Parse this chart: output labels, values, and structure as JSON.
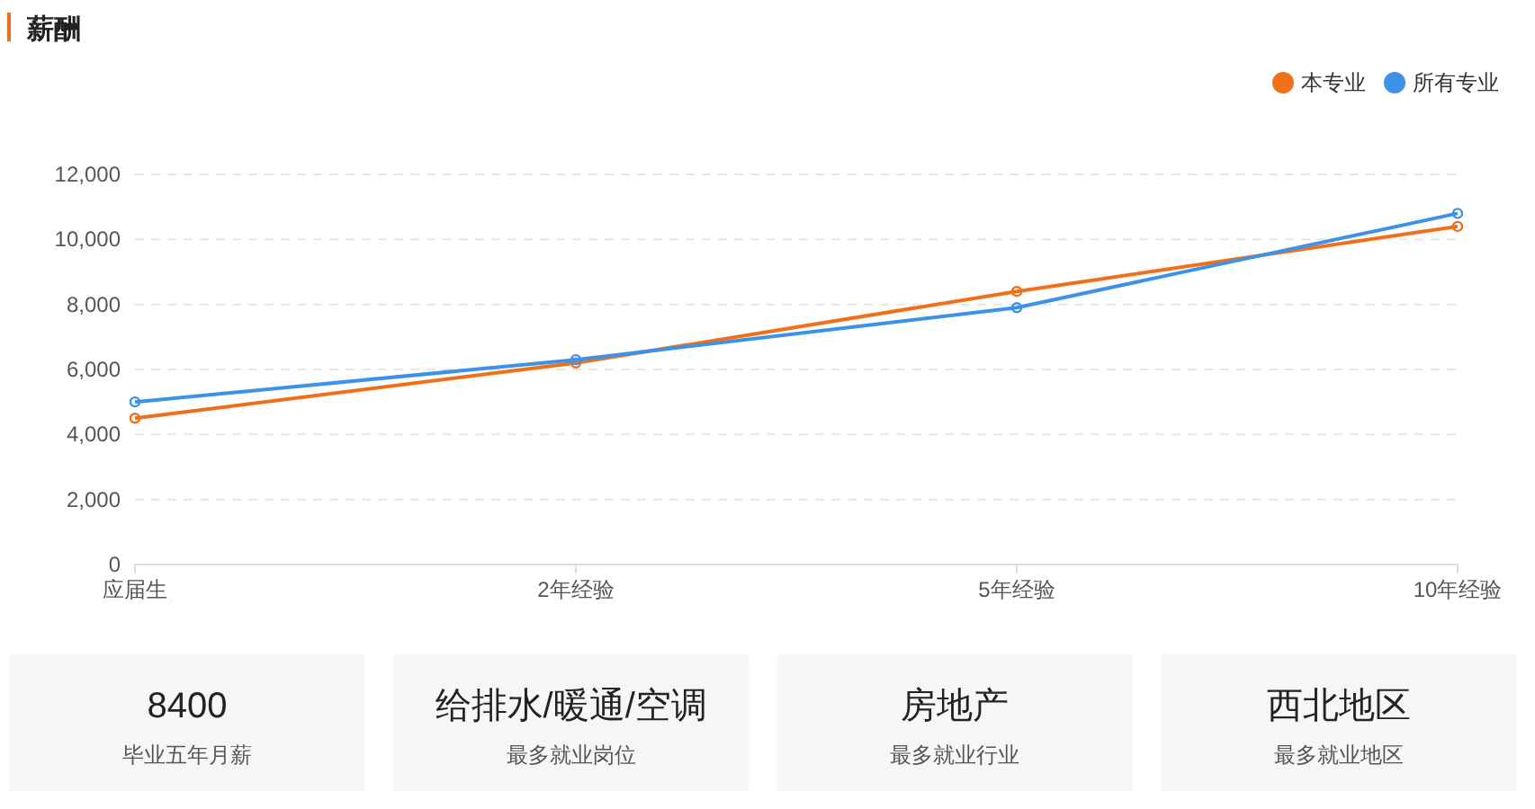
{
  "chart_data": [
    {
      "type": "line",
      "title": "薪酬",
      "categories": [
        "应届生",
        "2年经验",
        "5年经验",
        "10年经验"
      ],
      "series": [
        {
          "name": "本专业",
          "color": "#f07019",
          "values": [
            4500,
            6200,
            8400,
            10400
          ]
        },
        {
          "name": "所有专业",
          "color": "#3d92e8",
          "values": [
            5000,
            6300,
            7900,
            10800
          ]
        }
      ],
      "ylim": [
        0,
        12000
      ],
      "yticks": [
        {
          "value": 0,
          "label": "0"
        },
        {
          "value": 2000,
          "label": "2,000"
        },
        {
          "value": 4000,
          "label": "4,000"
        },
        {
          "value": 6000,
          "label": "6,000"
        },
        {
          "value": 8000,
          "label": "8,000"
        },
        {
          "value": 10000,
          "label": "10,000"
        },
        {
          "value": 12000,
          "label": "12,000"
        }
      ],
      "grid": "y",
      "legend": "top right",
      "marker": "circle",
      "line_style": "solid"
    },
    {
      "type": "other",
      "annotations": [
        "8400",
        "毕业五年月薪",
        "给排水/暖通/空调",
        "最多就业岗位",
        "房地产",
        "最多就业行业",
        "西北地区",
        "最多就业地区"
      ]
    }
  ]
}
